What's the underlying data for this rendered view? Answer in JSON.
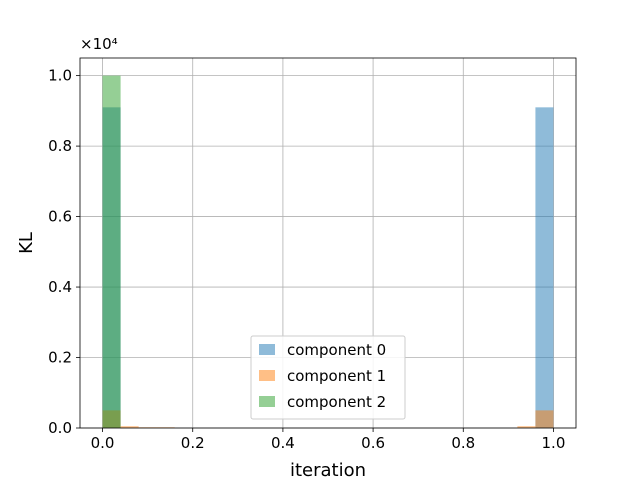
{
  "chart_data": {
    "type": "bar",
    "subtype": "histogram",
    "xlabel": "iteration",
    "ylabel": "KL",
    "xlim": [
      -0.05,
      1.05
    ],
    "ylim": [
      0,
      1.05
    ],
    "y_scale_note": "×10⁴",
    "x_ticks": [
      "0.0",
      "0.2",
      "0.4",
      "0.6",
      "0.8",
      "1.0"
    ],
    "y_ticks": [
      "0.0",
      "0.2",
      "0.4",
      "0.6",
      "0.8",
      "1.0"
    ],
    "grid": true,
    "legend_position": "lower-center",
    "bin_width": 0.04,
    "series": [
      {
        "name": "component 0",
        "color": "#1f77b4",
        "bins": [
          {
            "x": 0.0,
            "height": 0.91
          },
          {
            "x": 0.96,
            "height": 0.91
          }
        ]
      },
      {
        "name": "component 1",
        "color": "#ff7f0e",
        "bins": [
          {
            "x": 0.0,
            "height": 0.05
          },
          {
            "x": 0.04,
            "height": 0.005
          },
          {
            "x": 0.08,
            "height": 0.002
          },
          {
            "x": 0.12,
            "height": 0.002
          },
          {
            "x": 0.92,
            "height": 0.005
          },
          {
            "x": 0.96,
            "height": 0.05
          }
        ]
      },
      {
        "name": "component 2",
        "color": "#2ca02c",
        "bins": [
          {
            "x": 0.0,
            "height": 1.0
          }
        ]
      }
    ]
  }
}
